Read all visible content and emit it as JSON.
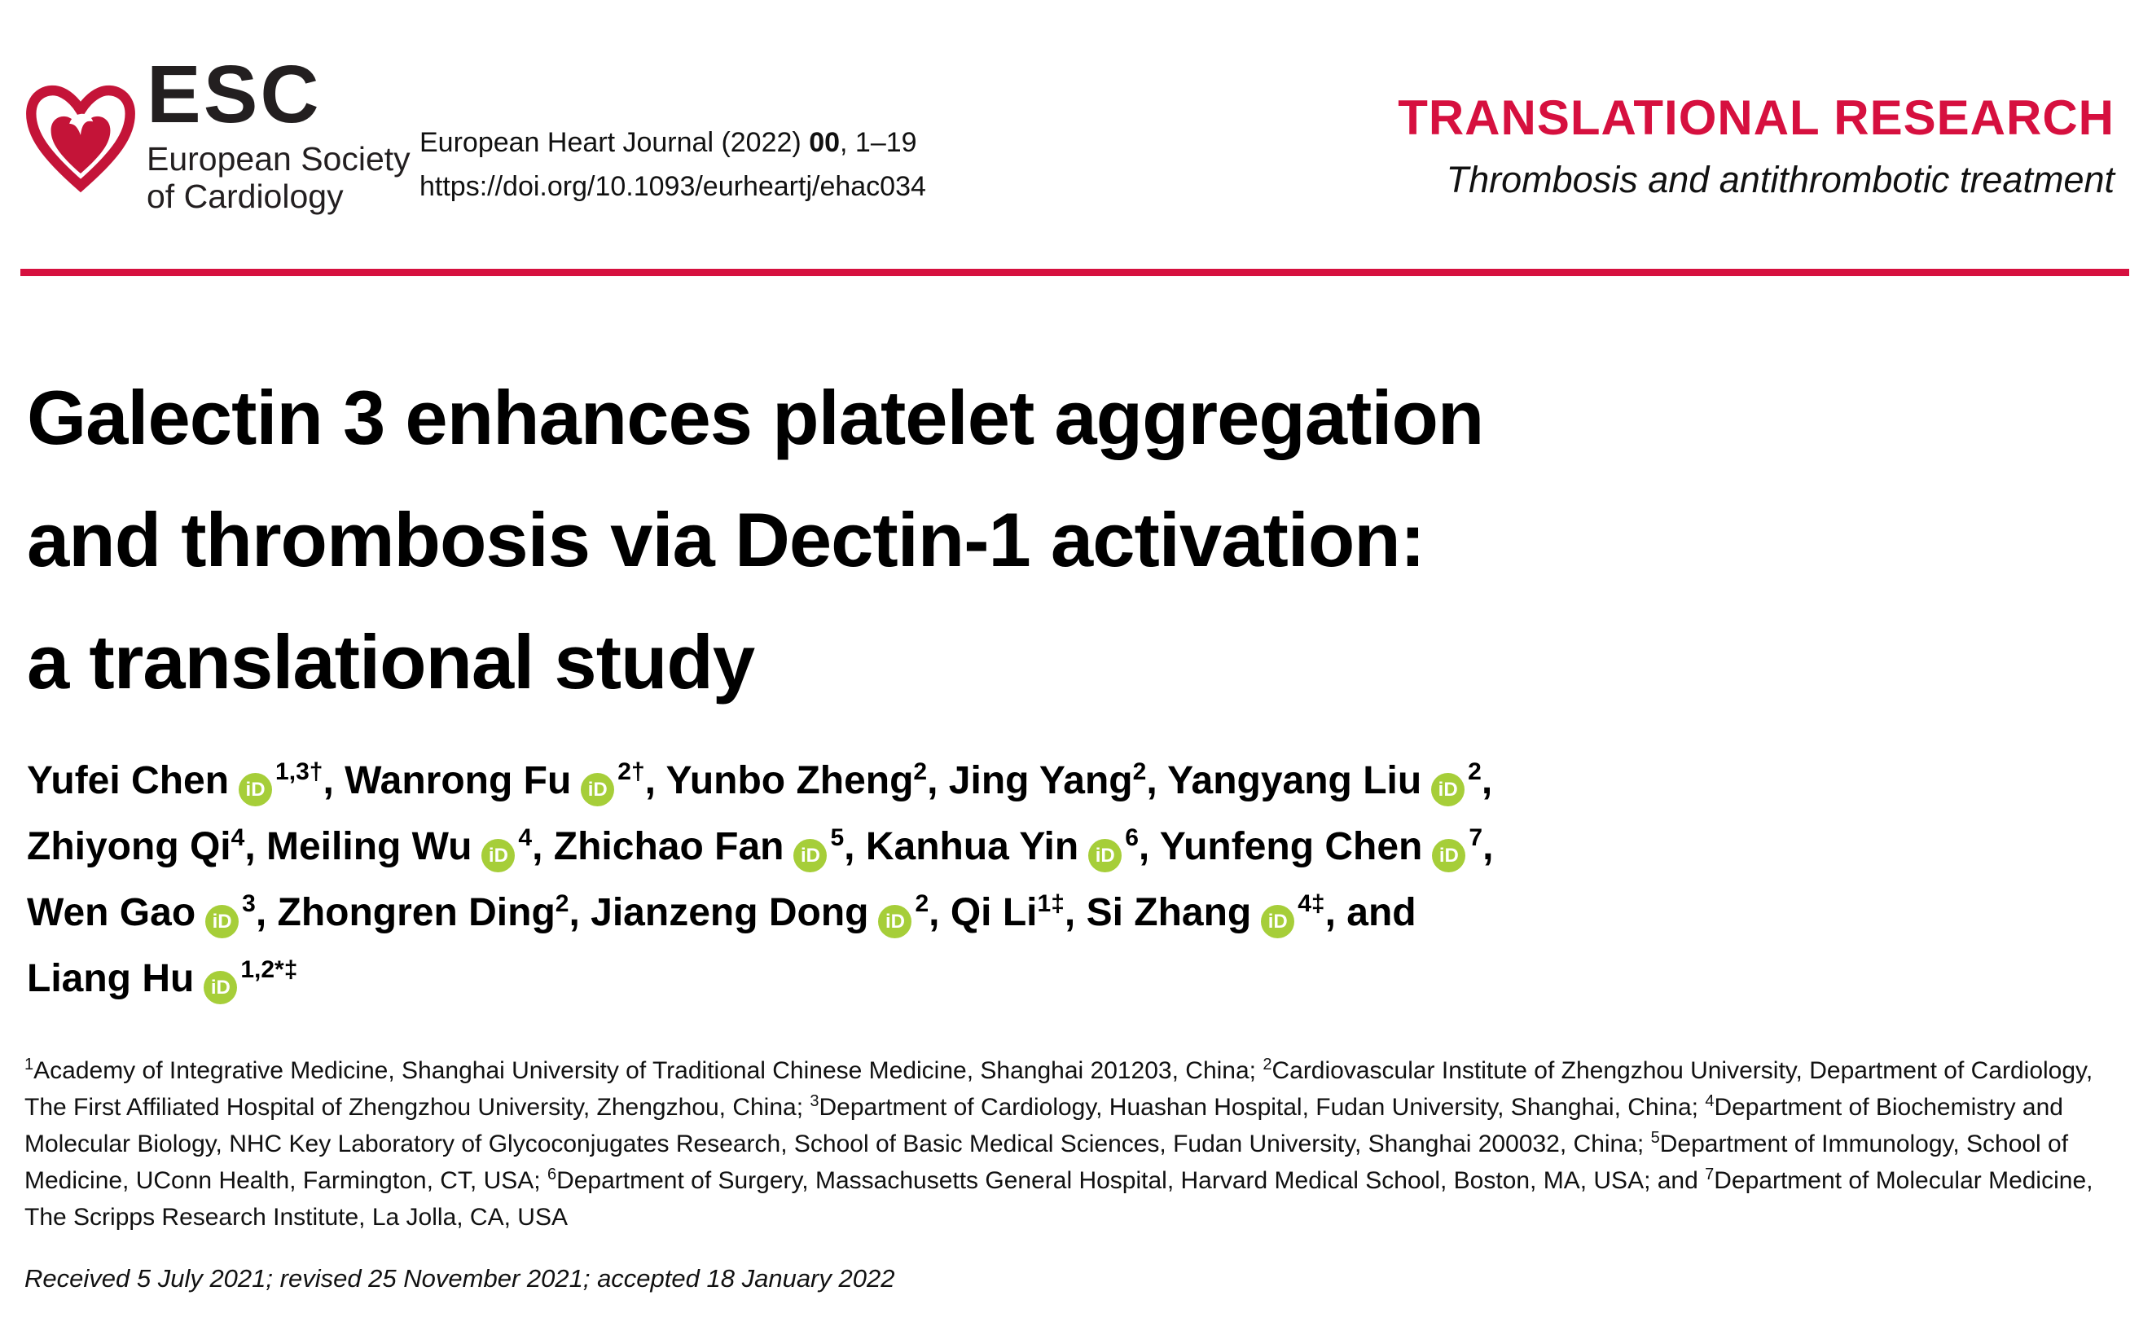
{
  "header": {
    "logo": {
      "acronym": "ESC",
      "society_line1": "European Society",
      "society_line2": "of Cardiology",
      "heart_color": "#c41438"
    },
    "citation": {
      "journal_prefix": "European Heart Journal (2022) ",
      "volume": "00",
      "pages_suffix": ", 1–19",
      "doi": "https://doi.org/10.1093/eurheartj/ehac034"
    },
    "banner": {
      "title": "TRANSLATIONAL RESEARCH",
      "subtitle": "Thrombosis and antithrombotic treatment",
      "accent_color": "#d6103f"
    }
  },
  "article": {
    "title_lines": [
      "Galectin 3 enhances platelet aggregation",
      "and thrombosis via Dectin-1 activation:",
      "a translational study"
    ],
    "author_lines": [
      [
        {
          "name": "Yufei Chen",
          "orcid": true,
          "sup": "1,3†",
          "trail": ", "
        },
        {
          "name": "Wanrong Fu",
          "orcid": true,
          "sup": "2†",
          "trail": ", "
        },
        {
          "name": "Yunbo Zheng",
          "orcid": false,
          "sup": "2",
          "trail": ", "
        },
        {
          "name": "Jing Yang",
          "orcid": false,
          "sup": "2",
          "trail": ", "
        },
        {
          "name": "Yangyang Liu",
          "orcid": true,
          "sup": "2",
          "trail": ","
        }
      ],
      [
        {
          "name": "Zhiyong Qi",
          "orcid": false,
          "sup": "4",
          "trail": ", "
        },
        {
          "name": "Meiling Wu",
          "orcid": true,
          "sup": "4",
          "trail": ", "
        },
        {
          "name": "Zhichao Fan",
          "orcid": true,
          "sup": "5",
          "trail": ", "
        },
        {
          "name": "Kanhua Yin",
          "orcid": true,
          "sup": "6",
          "trail": ", "
        },
        {
          "name": "Yunfeng Chen",
          "orcid": true,
          "sup": "7",
          "trail": ","
        }
      ],
      [
        {
          "name": "Wen Gao",
          "orcid": true,
          "sup": "3",
          "trail": ", "
        },
        {
          "name": "Zhongren Ding",
          "orcid": false,
          "sup": "2",
          "trail": ", "
        },
        {
          "name": "Jianzeng Dong",
          "orcid": true,
          "sup": "2",
          "trail": ", "
        },
        {
          "name": "Qi Li",
          "orcid": false,
          "sup": "1‡",
          "trail": ", "
        },
        {
          "name": "Si Zhang",
          "orcid": true,
          "sup": "4‡",
          "trail": ", and"
        }
      ],
      [
        {
          "name": "Liang Hu",
          "orcid": true,
          "sup": "1,2*‡",
          "trail": ""
        }
      ]
    ],
    "affiliations": [
      {
        "sup": "1",
        "text": "Academy of Integrative Medicine, Shanghai University of Traditional Chinese Medicine, Shanghai 201203, China; "
      },
      {
        "sup": "2",
        "text": "Cardiovascular Institute of Zhengzhou University, Department of Cardiology, The First Affiliated Hospital of Zhengzhou University, Zhengzhou, China; "
      },
      {
        "sup": "3",
        "text": "Department of Cardiology, Huashan Hospital, Fudan University, Shanghai, China; "
      },
      {
        "sup": "4",
        "text": "Department of Biochemistry and Molecular Biology, NHC Key Laboratory of Glycoconjugates Research, School of Basic Medical Sciences, Fudan University, Shanghai 200032, China; "
      },
      {
        "sup": "5",
        "text": "Department of Immunology, School of Medicine, UConn Health, Farmington, CT, USA; "
      },
      {
        "sup": "6",
        "text": "Department of Surgery, Massachusetts General Hospital, Harvard Medical School, Boston, MA, USA; and "
      },
      {
        "sup": "7",
        "text": "Department of Molecular Medicine, The Scripps Research Institute, La Jolla, CA, USA"
      }
    ],
    "received": "Received 5 July 2021; revised 25 November 2021; accepted 18 January 2022"
  },
  "icons": {
    "orcid": {
      "label": "iD",
      "color": "#a6ce39"
    }
  }
}
